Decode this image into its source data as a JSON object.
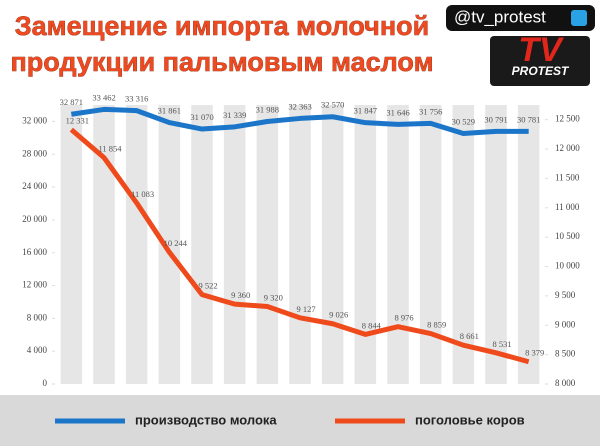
{
  "chart_data": {
    "type": "line",
    "title": [
      "Замещение импорта молочной",
      "продукции пальмовым маслом"
    ],
    "badge": "@tv_protest",
    "logo": [
      "TV",
      "PROTEST"
    ],
    "categories": [
      null,
      null,
      null,
      null,
      null,
      null,
      null,
      null,
      null,
      null,
      null,
      null,
      null,
      null,
      null
    ],
    "series": [
      {
        "name": "производство молока",
        "color": "#1b75c8",
        "axis": "y",
        "values": [
          32871,
          33462,
          33316,
          31861,
          31070,
          31339,
          31988,
          32363,
          32570,
          31847,
          31646,
          31756,
          30529,
          30791,
          30781
        ],
        "value_labels": [
          "32 871",
          "33 462",
          "33 316",
          "31 861",
          "31 070",
          "31 339",
          "31 988",
          "32 363",
          "32 570",
          "31 847",
          "31 646",
          "31 756",
          "30 529",
          "30 791",
          "30 781"
        ]
      },
      {
        "name": "поголовье коров",
        "color": "#ef4a1c",
        "axis": "y2",
        "values": [
          12331,
          11854,
          11083,
          10244,
          9522,
          9360,
          9320,
          9127,
          9026,
          8844,
          8976,
          8859,
          8661,
          8531,
          8379
        ],
        "value_labels": [
          "12 331",
          "11 854",
          "11 083",
          "10 244",
          "9 522",
          "9 360",
          "9 320",
          "9 127",
          "9 026",
          "8 844",
          "8 976",
          "8 859",
          "8 661",
          "8 531",
          "8 379"
        ]
      }
    ],
    "ylim": [
      0,
      34000
    ],
    "yticks": [
      0,
      {
        "value": 4000,
        "label": "4 000"
      },
      {
        "value": 8000,
        "label": "8 000"
      },
      {
        "value": 12000,
        "label": "12 000"
      },
      {
        "value": 16000,
        "label": "16 000"
      },
      {
        "value": 20000,
        "label": "20 000"
      },
      {
        "value": 24000,
        "label": "24 000"
      },
      {
        "value": 28000,
        "label": "28 000"
      },
      {
        "value": 32000,
        "label": "32 000"
      }
    ],
    "y2lim": [
      8000,
      12750
    ],
    "y2ticks": [
      {
        "value": 8000,
        "label": "8 000"
      },
      {
        "value": 8500,
        "label": "8 500"
      },
      {
        "value": 9000,
        "label": "9 000"
      },
      {
        "value": 9500,
        "label": "9 500"
      },
      {
        "value": 10000,
        "label": "10 000"
      },
      {
        "value": 10500,
        "label": "10 500"
      },
      {
        "value": 11000,
        "label": "11 000"
      },
      {
        "value": 11500,
        "label": "11 500"
      },
      {
        "value": 12000,
        "label": "12 000"
      },
      {
        "value": 12500,
        "label": "12 500"
      }
    ],
    "legend": "bottom"
  }
}
